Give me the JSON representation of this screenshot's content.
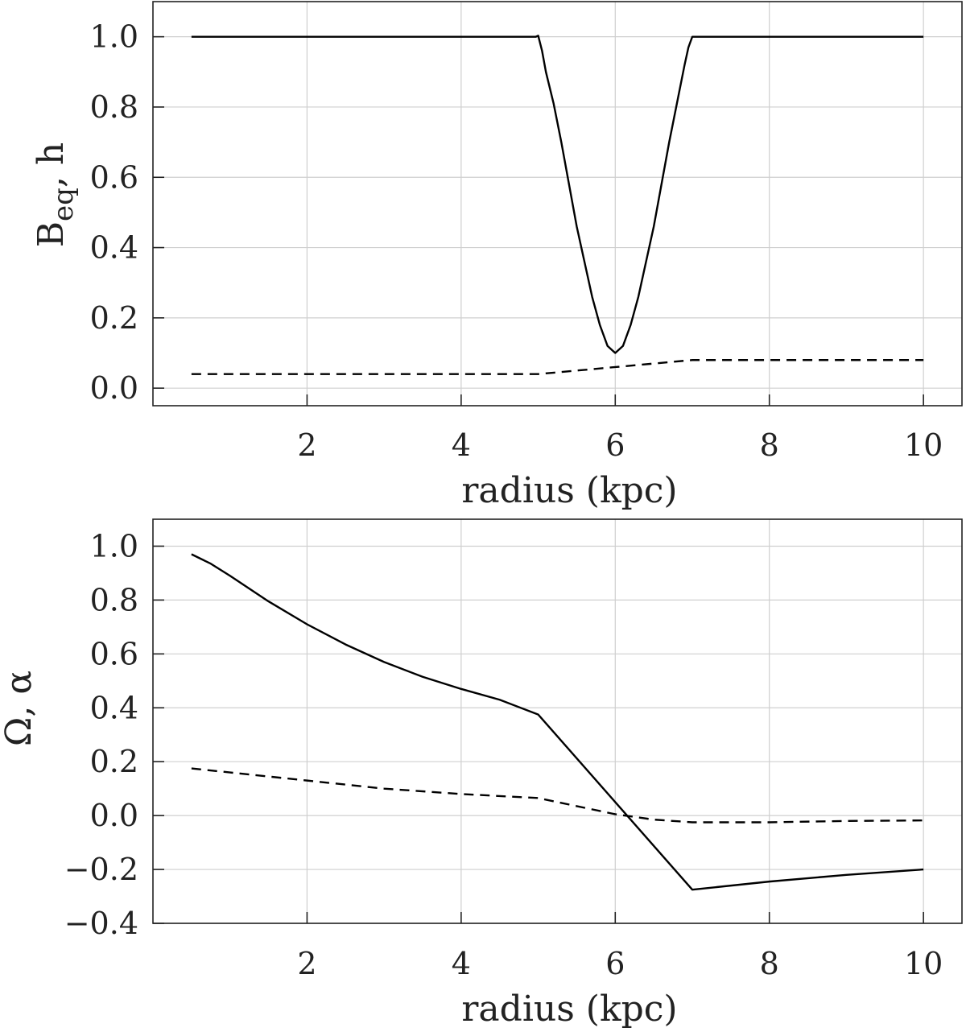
{
  "chart_data": [
    {
      "type": "line",
      "xlabel": "radius (kpc)",
      "ylabel_main": "B",
      "ylabel_sub": "eq",
      "ylabel_rest": ", h",
      "xlim": [
        0.0,
        10.5
      ],
      "ylim": [
        -0.05,
        1.1
      ],
      "x_ticks": [
        2,
        4,
        6,
        8,
        10
      ],
      "x_tick_labels": [
        "2",
        "4",
        "6",
        "8",
        "10"
      ],
      "y_ticks": [
        0.0,
        0.2,
        0.4,
        0.6,
        0.8,
        1.0
      ],
      "y_tick_labels": [
        "0.0",
        "0.2",
        "0.4",
        "0.6",
        "0.8",
        "1.0"
      ],
      "grid": true,
      "series": [
        {
          "style": "solid",
          "x": [
            0.5,
            1.0,
            2.0,
            3.0,
            4.0,
            4.97,
            5.0,
            5.05,
            5.1,
            5.2,
            5.3,
            5.4,
            5.5,
            5.6,
            5.7,
            5.8,
            5.9,
            6.0,
            6.1,
            6.2,
            6.3,
            6.4,
            6.5,
            6.6,
            6.7,
            6.8,
            6.9,
            6.95,
            7.0,
            8.0,
            9.0,
            10.0
          ],
          "y": [
            1.0,
            1.0,
            1.0,
            1.0,
            1.0,
            1.0,
            1.003,
            0.96,
            0.9,
            0.81,
            0.7,
            0.58,
            0.46,
            0.36,
            0.26,
            0.18,
            0.12,
            0.1,
            0.12,
            0.18,
            0.26,
            0.36,
            0.46,
            0.58,
            0.7,
            0.81,
            0.92,
            0.97,
            1.0,
            1.0,
            1.0,
            1.0
          ]
        },
        {
          "style": "dashed",
          "x": [
            0.5,
            1.0,
            2.0,
            3.0,
            4.0,
            4.5,
            5.0,
            5.5,
            6.0,
            6.5,
            7.0,
            8.0,
            9.0,
            10.0
          ],
          "y": [
            0.04,
            0.04,
            0.04,
            0.04,
            0.04,
            0.04,
            0.04,
            0.05,
            0.06,
            0.07,
            0.08,
            0.08,
            0.08,
            0.08
          ]
        }
      ]
    },
    {
      "type": "line",
      "xlabel": "radius (kpc)",
      "ylabel": "Ω,  α",
      "xlim": [
        0.0,
        10.5
      ],
      "ylim": [
        -0.4,
        1.1
      ],
      "x_ticks": [
        2,
        4,
        6,
        8,
        10
      ],
      "x_tick_labels": [
        "2",
        "4",
        "6",
        "8",
        "10"
      ],
      "y_ticks": [
        -0.4,
        -0.2,
        0.0,
        0.2,
        0.4,
        0.6,
        0.8,
        1.0
      ],
      "y_tick_labels": [
        "−0.4",
        "−0.2",
        "0.0",
        "0.2",
        "0.4",
        "0.6",
        "0.8",
        "1.0"
      ],
      "grid": true,
      "series": [
        {
          "style": "solid",
          "x": [
            0.5,
            0.75,
            1.0,
            1.5,
            2.0,
            2.5,
            3.0,
            3.5,
            4.0,
            4.5,
            5.0,
            6.0,
            7.0,
            8.0,
            9.0,
            10.0
          ],
          "y": [
            0.97,
            0.935,
            0.89,
            0.795,
            0.71,
            0.635,
            0.57,
            0.515,
            0.47,
            0.43,
            0.375,
            0.05,
            -0.275,
            -0.245,
            -0.22,
            -0.2
          ]
        },
        {
          "style": "dashed",
          "x": [
            0.5,
            1.0,
            2.0,
            3.0,
            4.0,
            5.0,
            5.5,
            6.0,
            6.5,
            7.0,
            8.0,
            9.0,
            10.0
          ],
          "y": [
            0.175,
            0.16,
            0.13,
            0.1,
            0.08,
            0.065,
            0.035,
            0.005,
            -0.015,
            -0.025,
            -0.025,
            -0.02,
            -0.018
          ]
        }
      ]
    }
  ]
}
